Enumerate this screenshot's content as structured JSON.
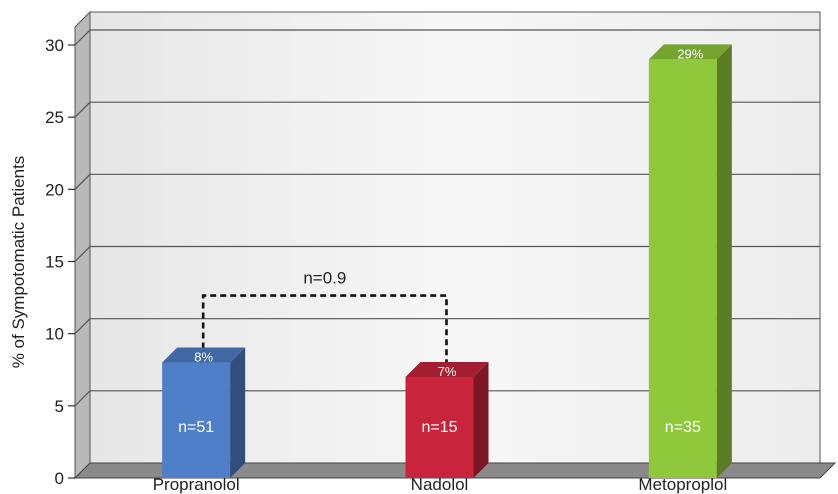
{
  "chart_data": {
    "type": "bar",
    "title": "",
    "xlabel": "",
    "ylabel": "% of Sympotomatic Patients",
    "ylim": [
      0,
      30
    ],
    "yticks": [
      0,
      5,
      10,
      15,
      20,
      25,
      30
    ],
    "grid": true,
    "legend": "none",
    "categories": [
      "Propranolol",
      "Nadolol",
      "Metoproplol"
    ],
    "values": [
      8,
      7,
      29
    ],
    "top_labels": [
      "8%",
      "7%",
      "29%"
    ],
    "inner_labels": [
      "n=51",
      "n=15",
      "n=35"
    ],
    "colors": [
      "#4f7fc8",
      "#c8243c",
      "#8fc83a"
    ],
    "annotation": {
      "text": "n=0.9",
      "between": [
        "Propranolol",
        "Nadolol"
      ],
      "level": 11.6
    }
  }
}
